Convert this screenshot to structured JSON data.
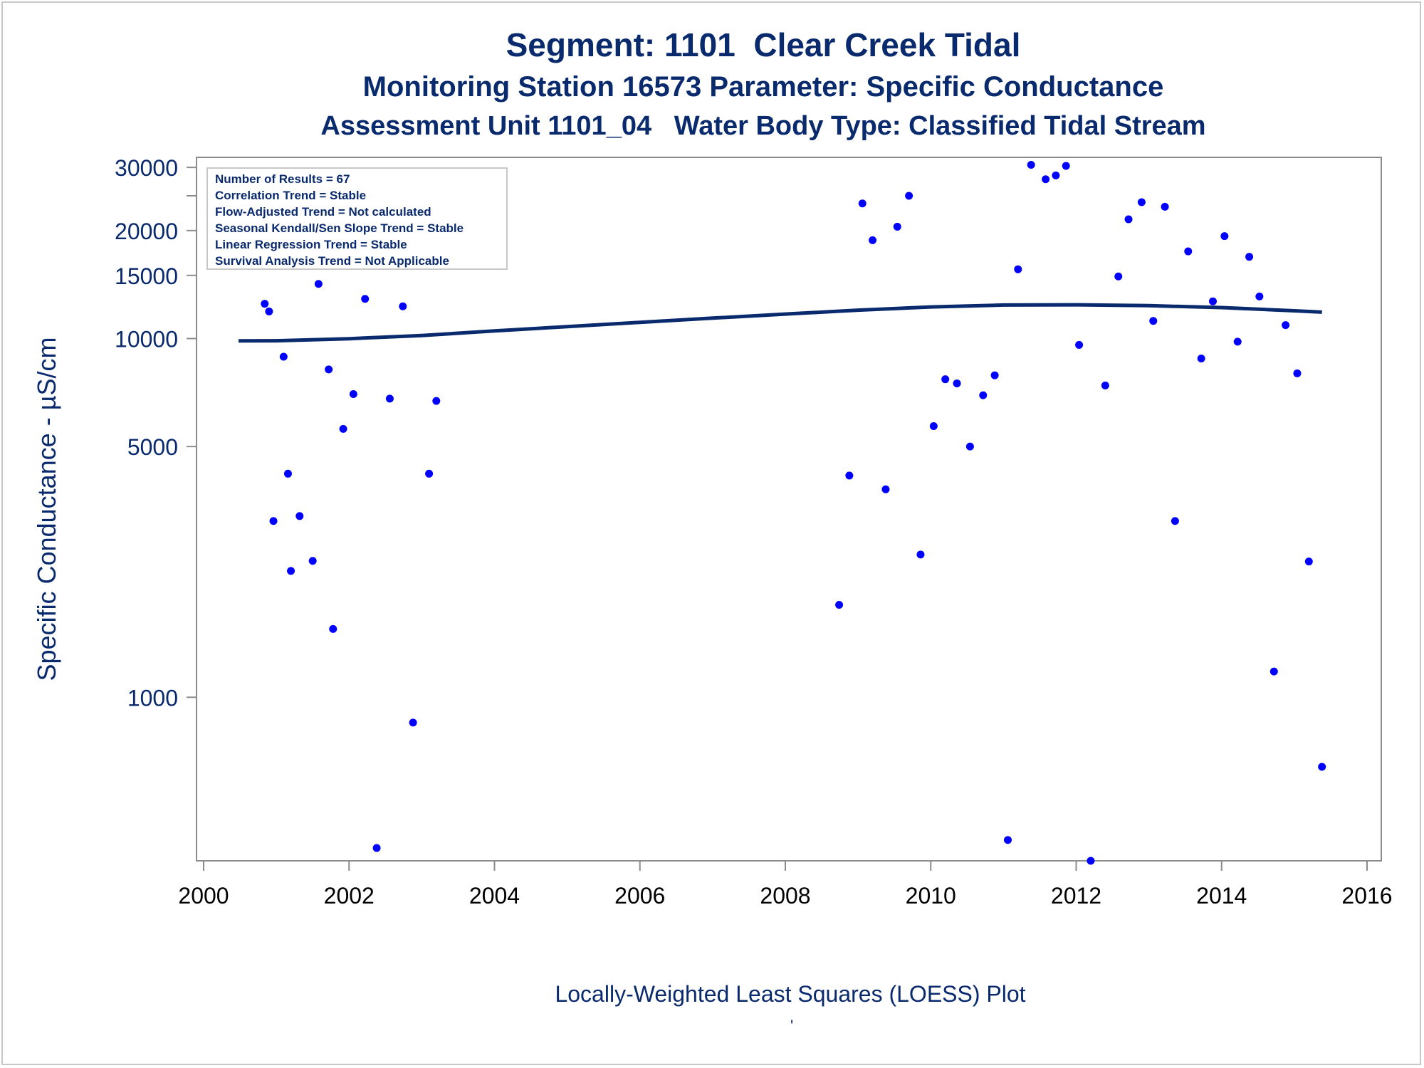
{
  "titles": {
    "line1": "Segment: 1101  Clear Creek Tidal",
    "line2": "Monitoring Station 16573 Parameter: Specific Conductance",
    "line3": "Assessment Unit 1101_04   Water Body Type: Classified Tidal Stream"
  },
  "footnote": "Locally-Weighted Least Squares (LOESS) Plot",
  "footnote_mark": "'",
  "colors": {
    "text": "#0a2a6e",
    "points": "#0000ff",
    "loess": "#0a2a6e",
    "axis": "#8c8c8c"
  },
  "stats_box": [
    "Number of Results = 67",
    "Correlation Trend = Stable",
    "Flow-Adjusted Trend = Not calculated",
    "Seasonal Kendall/Sen Slope Trend = Stable",
    "Linear Regression Trend = Stable",
    "Survival Analysis Trend = Not Applicable"
  ],
  "chart_data": {
    "type": "scatter",
    "title": "Segment: 1101  Clear Creek Tidal",
    "xlabel": "",
    "ylabel": "Specific Conductance -  µS/cm",
    "y_scale": "log",
    "xlim": [
      2000,
      2016
    ],
    "ylim": [
      350,
      32000
    ],
    "x_ticks": [
      2000,
      2002,
      2004,
      2006,
      2008,
      2010,
      2012,
      2014,
      2016
    ],
    "y_ticks": [
      1000,
      5000,
      10000,
      15000,
      20000,
      30000
    ],
    "y_minor_ticks": [
      25000
    ],
    "grid": false,
    "legend": "none",
    "series": [
      {
        "kind": "points",
        "x": [
          2000.48,
          2000.58,
          2000.62,
          2000.78,
          2000.84,
          2000.9,
          2000.96,
          2001.1,
          2001.16,
          2001.2,
          2001.32,
          2001.5,
          2001.58,
          2001.64,
          2001.72,
          2001.78,
          2001.92,
          2002.06,
          2002.22,
          2002.38,
          2002.56,
          2002.74,
          2002.88,
          2003.1,
          2003.2,
          2003.36,
          2008.74,
          2008.88,
          2009.06,
          2009.2,
          2009.38,
          2009.54,
          2009.7,
          2009.86,
          2010.04,
          2010.2,
          2010.36,
          2010.54,
          2010.72,
          2010.88,
          2011.06,
          2011.2,
          2011.38,
          2011.58,
          2011.72,
          2011.86,
          2012.04,
          2012.2,
          2012.4,
          2012.58,
          2012.72,
          2012.9,
          2013.06,
          2013.22,
          2013.36,
          2013.54,
          2013.72,
          2013.88,
          2014.04,
          2014.22,
          2014.38,
          2014.52,
          2014.72,
          2014.88,
          2015.04,
          2015.2,
          2015.38
        ],
        "y": [
          18500,
          20800,
          24800,
          20800,
          12500,
          11900,
          3100,
          8900,
          4200,
          2250,
          3200,
          2400,
          14200,
          22800,
          8200,
          1550,
          5600,
          7000,
          12900,
          380,
          6800,
          12300,
          850,
          4200,
          6700,
          16600,
          1810,
          4150,
          23800,
          18800,
          3800,
          20500,
          25000,
          2500,
          5700,
          7700,
          7500,
          5000,
          6950,
          7900,
          400,
          15600,
          30500,
          27800,
          28500,
          30300,
          9600,
          350,
          7400,
          14900,
          21500,
          24000,
          11200,
          23300,
          3100,
          17500,
          8800,
          12700,
          19300,
          9800,
          16900,
          13100,
          1180,
          10900,
          8000,
          2390,
          640
        ]
      },
      {
        "kind": "loess",
        "x": [
          2000.48,
          2001,
          2002,
          2003,
          2004,
          2005,
          2006,
          2007,
          2008,
          2009,
          2010,
          2011,
          2012,
          2013,
          2014,
          2015,
          2015.38
        ],
        "y": [
          9850,
          9860,
          9990,
          10200,
          10500,
          10800,
          11100,
          11400,
          11700,
          12000,
          12250,
          12400,
          12420,
          12350,
          12200,
          11950,
          11850
        ]
      }
    ]
  }
}
